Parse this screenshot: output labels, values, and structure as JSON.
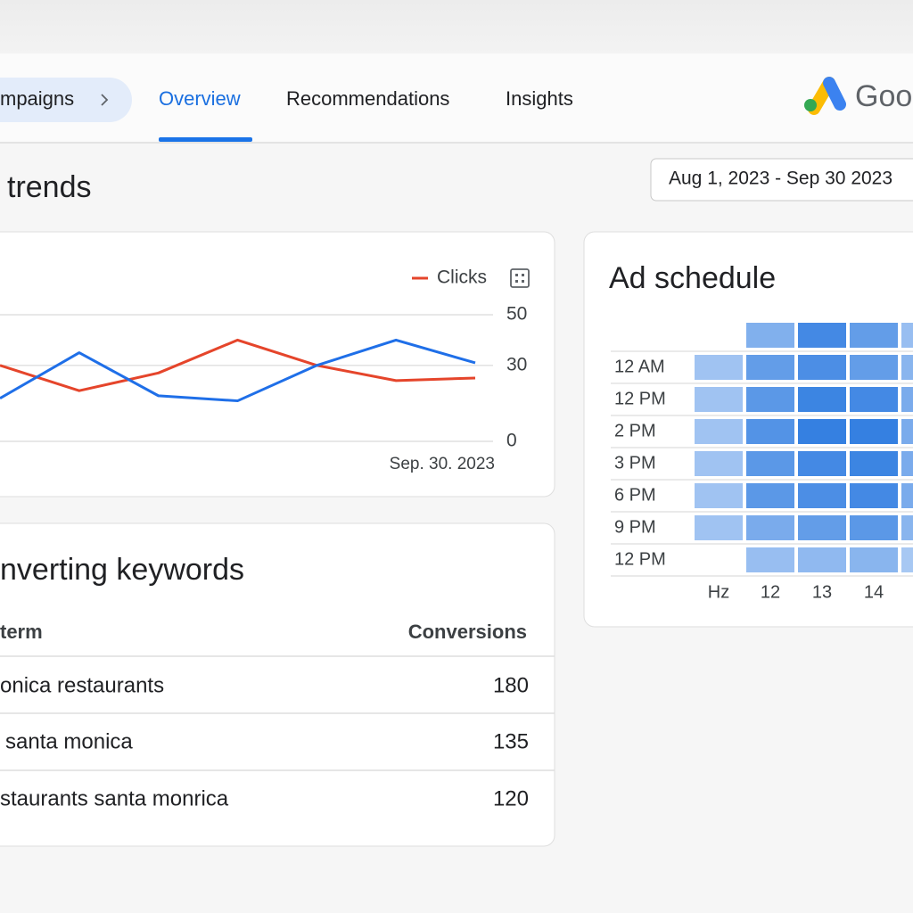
{
  "nav": {
    "tabs": [
      "mpaigns",
      "Overview",
      "Recommendations",
      "Insights"
    ],
    "brand": "Goo"
  },
  "page_title": "trends",
  "date_range": "Aug 1, 2023 - Sep 30  2023",
  "chart_data": [
    {
      "type": "line",
      "categories": [
        null,
        null,
        null,
        null,
        null,
        null,
        null
      ],
      "series": [
        {
          "name": "Clicks",
          "color": "#e5452b",
          "values": [
            30,
            20,
            27,
            40,
            30,
            24,
            25
          ]
        },
        {
          "color": "#1f6fe8",
          "values": [
            17,
            35,
            18,
            16,
            30,
            40,
            31
          ]
        }
      ],
      "ylim": [
        0,
        50
      ],
      "yticks": [
        0,
        30,
        50
      ],
      "grid": true,
      "x_label": "Sep. 30. 2023"
    },
    {
      "type": "heatmap",
      "title": "Ad schedule",
      "rows": [
        null,
        "12 AM",
        "12 PM",
        "2 PM",
        "3 PM",
        "6 PM",
        "9 PM",
        "12 PM"
      ],
      "columns": [
        "Hz",
        "12",
        "13",
        "14",
        null
      ],
      "values": [
        [
          null,
          0.45,
          0.85,
          0.65,
          0.3
        ],
        [
          0.25,
          0.65,
          0.8,
          0.65,
          0.4
        ],
        [
          0.25,
          0.7,
          0.9,
          0.85,
          0.5
        ],
        [
          0.25,
          0.75,
          0.95,
          0.95,
          0.5
        ],
        [
          0.25,
          0.7,
          0.85,
          0.9,
          0.5
        ],
        [
          0.25,
          0.7,
          0.8,
          0.85,
          0.5
        ],
        [
          0.25,
          0.5,
          0.65,
          0.7,
          0.4
        ],
        [
          null,
          0.3,
          0.35,
          0.4,
          0.2
        ]
      ],
      "colors": [
        "#c6dbf8",
        "#2d7be0"
      ]
    }
  ],
  "keywords": {
    "title": "nverting keywords",
    "columns": [
      "term",
      "Conversions"
    ],
    "rows": [
      [
        "onica restaurants",
        180
      ],
      [
        "santa monica",
        135
      ],
      [
        "staurants santa monrica",
        120
      ]
    ]
  }
}
